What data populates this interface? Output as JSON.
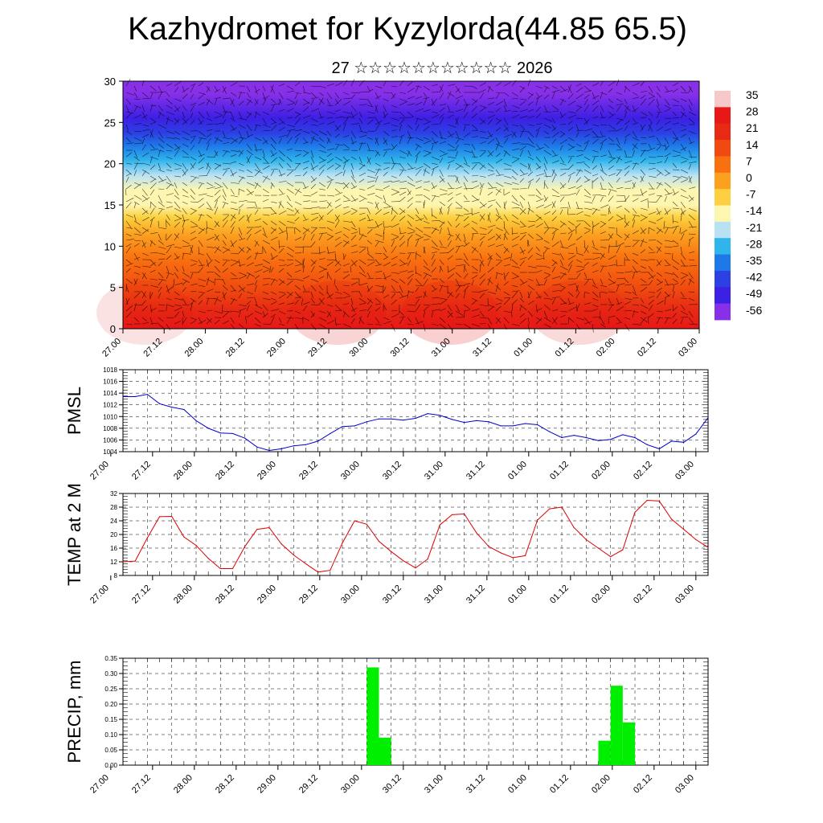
{
  "header": {
    "title": "Kazhydromet for Kyzylorda(44.85 65.5)",
    "subtitle": "27 ☆☆☆☆☆☆☆☆☆☆☆ 2026"
  },
  "time_labels": [
    "27.00",
    "27.12",
    "28.00",
    "28.12",
    "29.00",
    "29.12",
    "30.00",
    "30.12",
    "31.00",
    "31.12",
    "01.00",
    "01.12",
    "02.00",
    "02.12",
    "03.00"
  ],
  "chart_data": [
    {
      "id": "cross-section",
      "type": "heatmap",
      "title": "",
      "ylabel": "",
      "ylim": [
        0,
        30
      ],
      "yticks": [
        0,
        5,
        10,
        15,
        20,
        25,
        30
      ],
      "overlay": "wind barbs",
      "colorbar": {
        "labels": [
          "35",
          "28",
          "21",
          "14",
          "7",
          "0",
          "-7",
          "-14",
          "-21",
          "-28",
          "-35",
          "-42",
          "-49",
          "-56"
        ],
        "colors": [
          "#f7c8c8",
          "#e81818",
          "#e82a14",
          "#f04a10",
          "#f87010",
          "#fca020",
          "#fcd040",
          "#fdf6b0",
          "#b8e2f4",
          "#30b4ec",
          "#1e78e8",
          "#2c40e4",
          "#3c20e4",
          "#8830e8"
        ]
      }
    },
    {
      "id": "pmsl",
      "type": "line",
      "ylabel": "PMSL",
      "ylim": [
        1004,
        1018
      ],
      "yticks": [
        1004,
        1006,
        1008,
        1010,
        1012,
        1014,
        1016,
        1018
      ],
      "series": [
        {
          "color": "#0000cc",
          "x_hours": [
            0,
            3,
            6,
            9,
            12,
            15,
            18,
            21,
            24,
            27,
            30,
            33,
            36,
            39,
            42,
            45,
            48,
            51,
            54,
            57,
            60,
            63,
            66,
            69,
            72,
            75,
            78,
            81,
            84,
            87,
            90,
            93,
            96,
            99,
            102,
            105,
            108,
            111,
            114,
            117,
            120,
            123,
            126,
            129,
            132,
            135,
            138,
            141,
            144
          ],
          "values": [
            1013.4,
            1013.4,
            1013.8,
            1012.2,
            1011.6,
            1011.2,
            1009.3,
            1008.0,
            1007.2,
            1007.1,
            1006.3,
            1004.8,
            1004.2,
            1004.5,
            1005.0,
            1005.2,
            1005.8,
            1007.1,
            1008.3,
            1008.4,
            1009.1,
            1009.6,
            1009.6,
            1009.4,
            1009.7,
            1010.5,
            1010.2,
            1009.5,
            1009.0,
            1009.3,
            1009.1,
            1008.4,
            1008.4,
            1008.8,
            1008.6,
            1007.4,
            1006.4,
            1006.8,
            1006.4,
            1005.9,
            1006.1,
            1006.9,
            1006.4,
            1005.2,
            1004.5,
            1005.8,
            1005.6,
            1007.0,
            1009.8
          ]
        }
      ]
    },
    {
      "id": "temp2m",
      "type": "line",
      "ylabel": "TEMP at 2 M",
      "ylim": [
        8,
        32
      ],
      "yticks": [
        8,
        12,
        16,
        20,
        24,
        28,
        32
      ],
      "series": [
        {
          "color": "#dd0000",
          "x_hours": [
            0,
            3,
            6,
            9,
            12,
            15,
            18,
            21,
            24,
            27,
            30,
            33,
            36,
            39,
            42,
            45,
            48,
            51,
            54,
            57,
            60,
            63,
            66,
            69,
            72,
            75,
            78,
            81,
            84,
            87,
            90,
            93,
            96,
            99,
            102,
            105,
            108,
            111,
            114,
            117,
            120,
            123,
            126,
            129,
            132,
            135,
            138,
            141,
            144
          ],
          "values": [
            12.0,
            12.2,
            19.0,
            25.2,
            25.3,
            19.3,
            16.8,
            13.0,
            10.0,
            10.0,
            16.5,
            21.5,
            22.0,
            17.2,
            14.0,
            11.4,
            9.0,
            9.5,
            17.5,
            24.0,
            23.0,
            18.0,
            15.0,
            12.3,
            10.2,
            12.8,
            22.8,
            25.8,
            26.0,
            20.5,
            16.5,
            14.6,
            13.2,
            13.8,
            24.2,
            27.5,
            28.0,
            22.0,
            18.5,
            16.0,
            13.5,
            15.5,
            26.5,
            30.0,
            29.8,
            24.5,
            21.5,
            18.5,
            16.2
          ]
        }
      ]
    },
    {
      "id": "precip",
      "type": "bar",
      "ylabel": "PRECIP, mm",
      "ylim": [
        0,
        0.35
      ],
      "yticks": [
        "0.00",
        "0.05",
        "0.10",
        "0.15",
        "0.20",
        "0.25",
        "0.30",
        "0.35"
      ],
      "series": [
        {
          "color": "#00ee00",
          "bars": [
            {
              "start_hour": 60,
              "end_hour": 63,
              "value": 0.32
            },
            {
              "start_hour": 63,
              "end_hour": 66,
              "value": 0.09
            },
            {
              "start_hour": 117,
              "end_hour": 120,
              "value": 0.08
            },
            {
              "start_hour": 120,
              "end_hour": 123,
              "value": 0.26
            },
            {
              "start_hour": 123,
              "end_hour": 126,
              "value": 0.14
            }
          ]
        }
      ]
    }
  ]
}
